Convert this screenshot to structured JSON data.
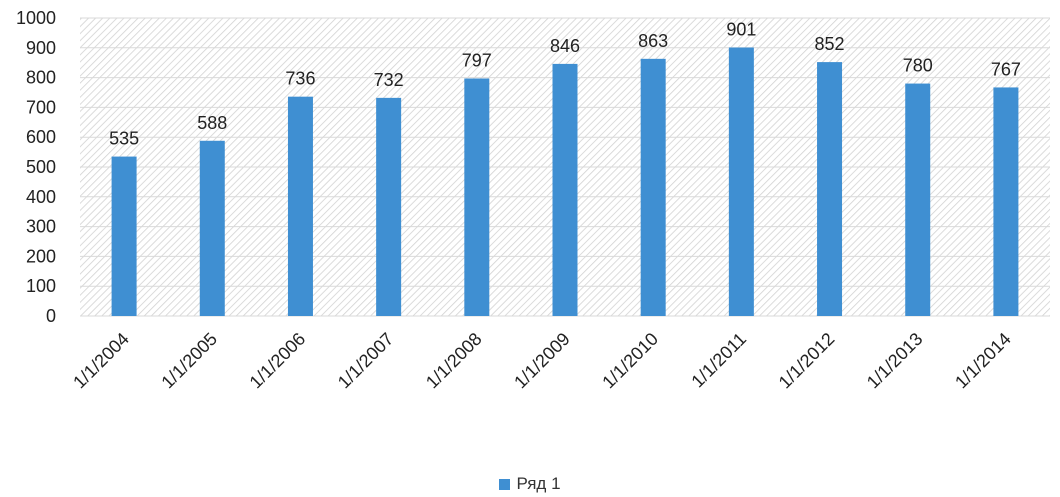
{
  "colors": {
    "bar": "#3f8fd2",
    "gridline": "#d9d9d9",
    "hatch": "#d2d2d2",
    "text": "#222222"
  },
  "chart_data": {
    "type": "bar",
    "categories": [
      "1/1/2004",
      "1/1/2005",
      "1/1/2006",
      "1/1/2007",
      "1/1/2008",
      "1/1/2009",
      "1/1/2010",
      "1/1/2011",
      "1/1/2012",
      "1/1/2013",
      "1/1/2014"
    ],
    "series": [
      {
        "name": "Ряд 1",
        "values": [
          535,
          588,
          736,
          732,
          797,
          846,
          863,
          901,
          852,
          780,
          767
        ]
      }
    ],
    "y_ticks": [
      "0",
      "100",
      "200",
      "300",
      "400",
      "500",
      "600",
      "700",
      "800",
      "900",
      "1000"
    ],
    "data_labels": [
      "535",
      "588",
      "736",
      "732",
      "797",
      "846",
      "863",
      "901",
      "852",
      "780",
      "767"
    ],
    "ylim": [
      0,
      1000
    ],
    "grid": true,
    "plot_background": "diagonal-hatch",
    "legend_position": "bottom",
    "title": "",
    "xlabel": "",
    "ylabel": ""
  }
}
